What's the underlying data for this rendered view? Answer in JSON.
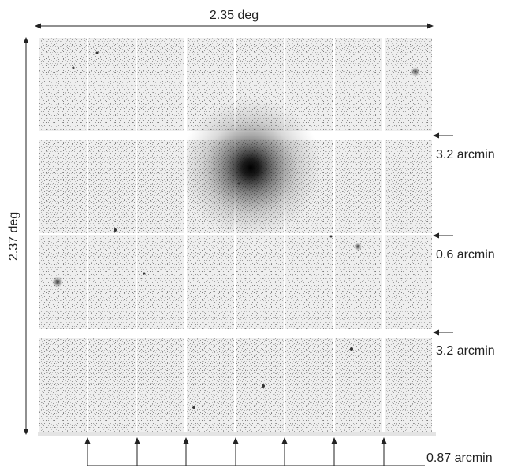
{
  "labels": {
    "width": "2.35 deg",
    "height": "2.37 deg",
    "gap_top": "3.2 arcmin",
    "gap_middle": "0.6 arcmin",
    "gap_bottom": "3.2 arcmin",
    "gap_columns": "0.87 arcmin"
  },
  "mosaic": {
    "rows": 4,
    "columns": 8,
    "background_color": "#f1f1f1",
    "noise_color": "#555555",
    "bright_source_color": "#111111"
  }
}
